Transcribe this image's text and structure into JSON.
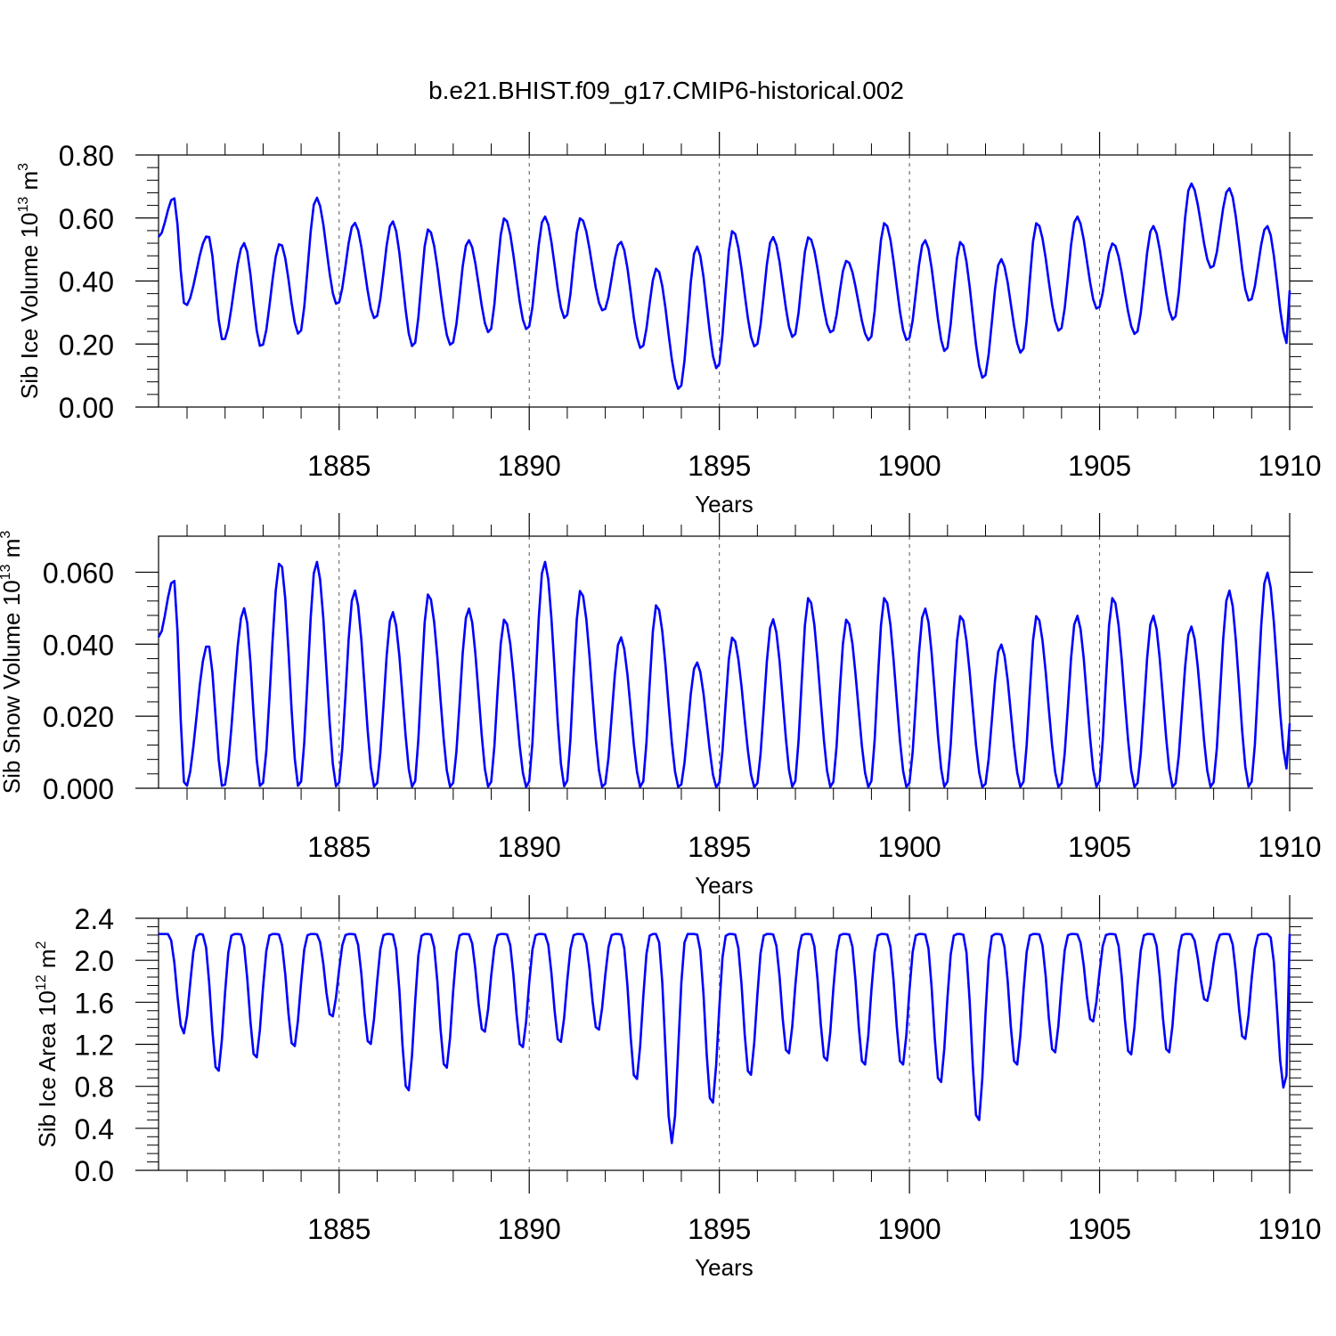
{
  "figure_title": "b.e21.BHIST.f09_g17.CMIP6-historical.002",
  "colors": {
    "line": "#0000ff",
    "axis": "#000000",
    "grid": "#555555"
  },
  "chart_data": [
    {
      "type": "line",
      "name": "ice-volume",
      "title": "b.e21.BHIST.f09_g17.CMIP6-historical.002",
      "ylabel_main": "Sib Ice Volume 10",
      "ylabel_exp": "13",
      "ylabel_unit": " m",
      "ylabel_unit_exp": "3",
      "xlabel": "Years",
      "xlim": [
        1880.25,
        1910.0
      ],
      "ylim": [
        0.0,
        0.8
      ],
      "xticks": [
        1885,
        1890,
        1895,
        1900,
        1905,
        1910
      ],
      "xtick_labels": [
        "1885",
        "1890",
        "1895",
        "1900",
        "1905",
        "1910"
      ],
      "yticks": [
        0.0,
        0.2,
        0.4,
        0.6,
        0.8
      ],
      "ytick_labels": [
        "0.00",
        "0.20",
        "0.40",
        "0.60",
        "0.80"
      ],
      "grid_x": "dashed at tick years",
      "peaks": [
        [
          1880.65,
          0.665
        ],
        [
          1881.55,
          0.545
        ],
        [
          1882.5,
          0.52
        ],
        [
          1883.45,
          0.52
        ],
        [
          1884.4,
          0.665
        ],
        [
          1885.4,
          0.585
        ],
        [
          1886.4,
          0.59
        ],
        [
          1887.35,
          0.565
        ],
        [
          1888.4,
          0.53
        ],
        [
          1889.35,
          0.6
        ],
        [
          1890.4,
          0.605
        ],
        [
          1891.35,
          0.6
        ],
        [
          1892.4,
          0.525
        ],
        [
          1893.35,
          0.44
        ],
        [
          1894.4,
          0.51
        ],
        [
          1895.35,
          0.56
        ],
        [
          1896.4,
          0.54
        ],
        [
          1897.35,
          0.54
        ],
        [
          1898.35,
          0.465
        ],
        [
          1899.35,
          0.585
        ],
        [
          1900.4,
          0.53
        ],
        [
          1901.35,
          0.525
        ],
        [
          1902.4,
          0.47
        ],
        [
          1903.35,
          0.585
        ],
        [
          1904.4,
          0.605
        ],
        [
          1905.35,
          0.52
        ],
        [
          1906.4,
          0.575
        ],
        [
          1907.4,
          0.71
        ],
        [
          1908.4,
          0.695
        ],
        [
          1909.4,
          0.575
        ]
      ],
      "troughs": [
        [
          1880.95,
          0.32
        ],
        [
          1881.95,
          0.21
        ],
        [
          1882.95,
          0.19
        ],
        [
          1883.95,
          0.23
        ],
        [
          1884.95,
          0.325
        ],
        [
          1885.95,
          0.28
        ],
        [
          1886.95,
          0.19
        ],
        [
          1887.95,
          0.195
        ],
        [
          1888.95,
          0.235
        ],
        [
          1889.95,
          0.245
        ],
        [
          1890.95,
          0.28
        ],
        [
          1891.95,
          0.305
        ],
        [
          1892.95,
          0.185
        ],
        [
          1893.95,
          0.055
        ],
        [
          1894.95,
          0.12
        ],
        [
          1895.95,
          0.19
        ],
        [
          1896.95,
          0.22
        ],
        [
          1897.95,
          0.235
        ],
        [
          1898.95,
          0.21
        ],
        [
          1899.95,
          0.21
        ],
        [
          1900.95,
          0.175
        ],
        [
          1901.95,
          0.09
        ],
        [
          1902.95,
          0.17
        ],
        [
          1903.95,
          0.24
        ],
        [
          1904.95,
          0.31
        ],
        [
          1905.95,
          0.23
        ],
        [
          1906.95,
          0.275
        ],
        [
          1907.95,
          0.44
        ],
        [
          1908.95,
          0.335
        ],
        [
          1909.95,
          0.2
        ]
      ],
      "start_value": 0.54,
      "end_value": 0.37
    },
    {
      "type": "line",
      "name": "snow-volume",
      "ylabel_main": "Sib Snow Volume 10",
      "ylabel_exp": "13",
      "ylabel_unit": " m",
      "ylabel_unit_exp": "3",
      "xlabel": "Years",
      "xlim": [
        1880.25,
        1910.0
      ],
      "ylim": [
        0.0,
        0.07
      ],
      "xticks": [
        1885,
        1890,
        1895,
        1900,
        1905,
        1910
      ],
      "xtick_labels": [
        "1885",
        "1890",
        "1895",
        "1900",
        "1905",
        "1910"
      ],
      "yticks": [
        0.0,
        0.02,
        0.04,
        0.06
      ],
      "ytick_labels": [
        "0.000",
        "0.020",
        "0.040",
        "0.060"
      ],
      "grid_x": "dashed at tick years",
      "peaks": [
        [
          1880.65,
          0.058
        ],
        [
          1881.55,
          0.04
        ],
        [
          1882.5,
          0.05
        ],
        [
          1883.45,
          0.063
        ],
        [
          1884.4,
          0.063
        ],
        [
          1885.4,
          0.055
        ],
        [
          1886.4,
          0.049
        ],
        [
          1887.35,
          0.054
        ],
        [
          1888.4,
          0.05
        ],
        [
          1889.35,
          0.047
        ],
        [
          1890.4,
          0.063
        ],
        [
          1891.35,
          0.055
        ],
        [
          1892.4,
          0.042
        ],
        [
          1893.35,
          0.051
        ],
        [
          1894.4,
          0.035
        ],
        [
          1895.35,
          0.042
        ],
        [
          1896.4,
          0.047
        ],
        [
          1897.35,
          0.053
        ],
        [
          1898.35,
          0.047
        ],
        [
          1899.35,
          0.053
        ],
        [
          1900.4,
          0.05
        ],
        [
          1901.35,
          0.048
        ],
        [
          1902.4,
          0.04
        ],
        [
          1903.35,
          0.048
        ],
        [
          1904.4,
          0.048
        ],
        [
          1905.35,
          0.053
        ],
        [
          1906.4,
          0.048
        ],
        [
          1907.4,
          0.045
        ],
        [
          1908.4,
          0.055
        ],
        [
          1909.4,
          0.06
        ]
      ],
      "troughs": [
        [
          1880.95,
          0.0
        ],
        [
          1881.95,
          0.0
        ],
        [
          1882.95,
          0.0
        ],
        [
          1883.95,
          0.0
        ],
        [
          1884.95,
          0.0
        ],
        [
          1885.95,
          0.0
        ],
        [
          1886.95,
          0.0
        ],
        [
          1887.95,
          0.0
        ],
        [
          1888.95,
          0.0
        ],
        [
          1889.95,
          0.0
        ],
        [
          1890.95,
          0.0
        ],
        [
          1891.95,
          0.0
        ],
        [
          1892.95,
          0.0
        ],
        [
          1893.95,
          0.0
        ],
        [
          1894.95,
          0.0
        ],
        [
          1895.95,
          0.0
        ],
        [
          1896.95,
          0.0
        ],
        [
          1897.95,
          0.0
        ],
        [
          1898.95,
          0.0
        ],
        [
          1899.95,
          0.0
        ],
        [
          1900.95,
          0.0
        ],
        [
          1901.95,
          0.0
        ],
        [
          1902.95,
          0.0
        ],
        [
          1903.95,
          0.0
        ],
        [
          1904.95,
          0.0
        ],
        [
          1905.95,
          0.0
        ],
        [
          1906.95,
          0.0
        ],
        [
          1907.95,
          0.0
        ],
        [
          1908.95,
          0.0
        ],
        [
          1909.95,
          0.005
        ]
      ],
      "start_value": 0.042,
      "end_value": 0.018
    },
    {
      "type": "line",
      "name": "ice-area",
      "ylabel_main": "Sib Ice Area 10",
      "ylabel_exp": "12",
      "ylabel_unit": " m",
      "ylabel_unit_exp": "2",
      "xlabel": "Years",
      "xlim": [
        1880.25,
        1910.0
      ],
      "ylim": [
        0.0,
        2.4
      ],
      "xticks": [
        1885,
        1890,
        1895,
        1900,
        1905,
        1910
      ],
      "xtick_labels": [
        "1885",
        "1890",
        "1895",
        "1900",
        "1905",
        "1910"
      ],
      "yticks": [
        0.0,
        0.4,
        0.8,
        1.2,
        1.6,
        2.0,
        2.4
      ],
      "ytick_labels": [
        "0.0",
        "0.4",
        "0.8",
        "1.2",
        "1.6",
        "2.0",
        "2.4"
      ],
      "grid_x": "dashed at tick years",
      "plateau": 2.25,
      "minima": [
        [
          1880.9,
          1.3
        ],
        [
          1881.8,
          0.92
        ],
        [
          1882.8,
          1.05
        ],
        [
          1883.8,
          1.16
        ],
        [
          1884.8,
          1.45
        ],
        [
          1885.8,
          1.18
        ],
        [
          1886.8,
          0.73
        ],
        [
          1887.8,
          0.95
        ],
        [
          1888.8,
          1.3
        ],
        [
          1889.8,
          1.15
        ],
        [
          1890.8,
          1.2
        ],
        [
          1891.8,
          1.32
        ],
        [
          1892.8,
          0.84
        ],
        [
          1893.75,
          0.26
        ],
        [
          1894.8,
          0.61
        ],
        [
          1895.8,
          0.88
        ],
        [
          1896.8,
          1.09
        ],
        [
          1897.8,
          1.02
        ],
        [
          1898.8,
          0.98
        ],
        [
          1899.8,
          0.98
        ],
        [
          1900.8,
          0.81
        ],
        [
          1901.8,
          0.44
        ],
        [
          1902.8,
          0.98
        ],
        [
          1903.8,
          1.1
        ],
        [
          1904.8,
          1.4
        ],
        [
          1905.8,
          1.08
        ],
        [
          1906.8,
          1.1
        ],
        [
          1907.8,
          1.6
        ],
        [
          1908.8,
          1.23
        ],
        [
          1909.85,
          0.78
        ]
      ],
      "end_value": 2.25
    }
  ]
}
